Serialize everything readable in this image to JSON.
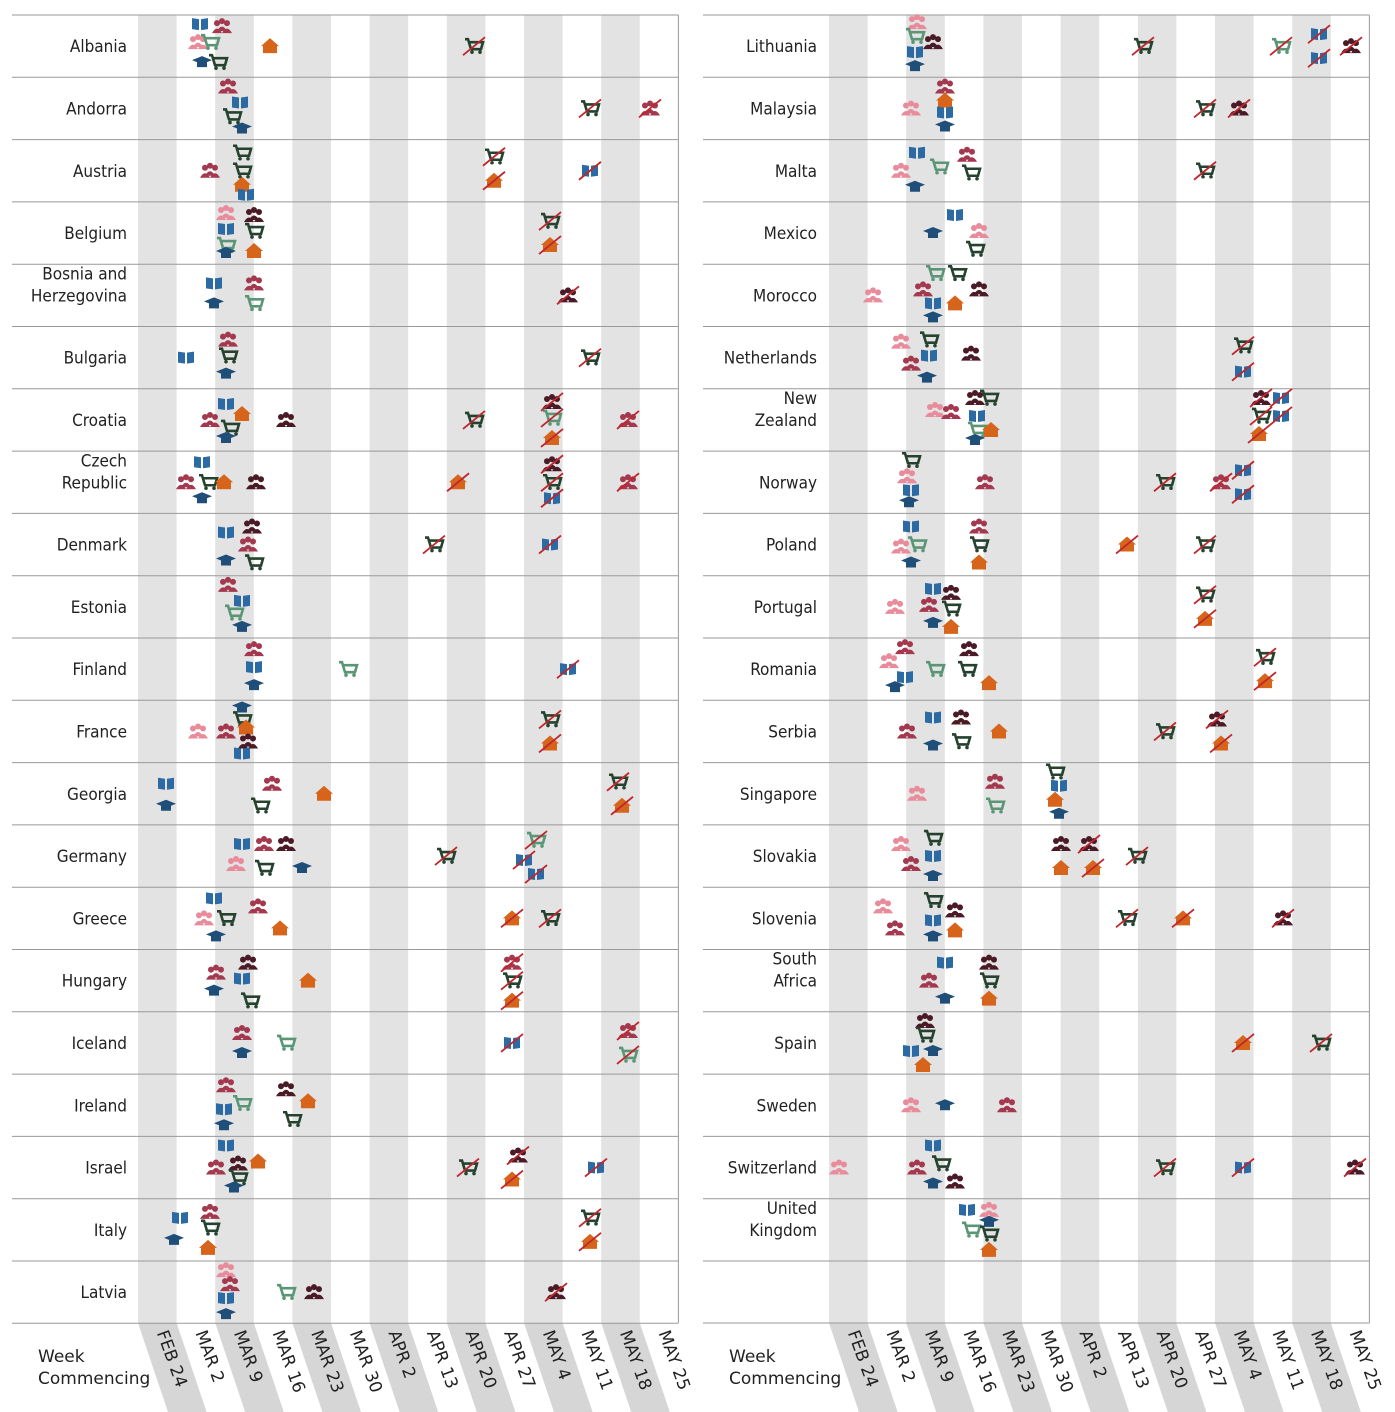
{
  "panels": [
    {
      "countries": [
        "Albania",
        "Andorra",
        "Austria",
        "Belgium",
        [
          "Bosnia and",
          "Herzegovina"
        ],
        "Bulgaria",
        "Croatia",
        [
          "Czech",
          "Republic"
        ],
        "Denmark",
        "Estonia",
        "Finland",
        "France",
        "Georgia",
        "Germany",
        "Greece",
        "Hungary",
        "Iceland",
        "Ireland",
        "Israel",
        "Italy",
        "Latvia"
      ]
    },
    {
      "countries": [
        "Lithuania",
        "Malaysia",
        "Malta",
        "Mexico",
        "Morocco",
        "Netherlands",
        [
          "New",
          "Zealand"
        ],
        "Norway",
        "Poland",
        "Portugal",
        "Romania",
        "Serbia",
        "Singapore",
        "Slovakia",
        "Slovenia",
        [
          "South",
          "Africa"
        ],
        "Spain",
        "Sweden",
        "Switzerland",
        [
          "United",
          "Kingdom"
        ]
      ]
    }
  ],
  "weeks": [
    "FEB 24",
    "MAR 2",
    "MAR 9",
    "MAR 16",
    "MAR 23",
    "MAR 30",
    "APR 2",
    "APR 13",
    "APR 20",
    "APR 27",
    "MAY 4",
    "MAY 11",
    "MAY 18",
    "MAY 25"
  ],
  "axis_label": [
    "Week",
    "Commencing"
  ]
}
